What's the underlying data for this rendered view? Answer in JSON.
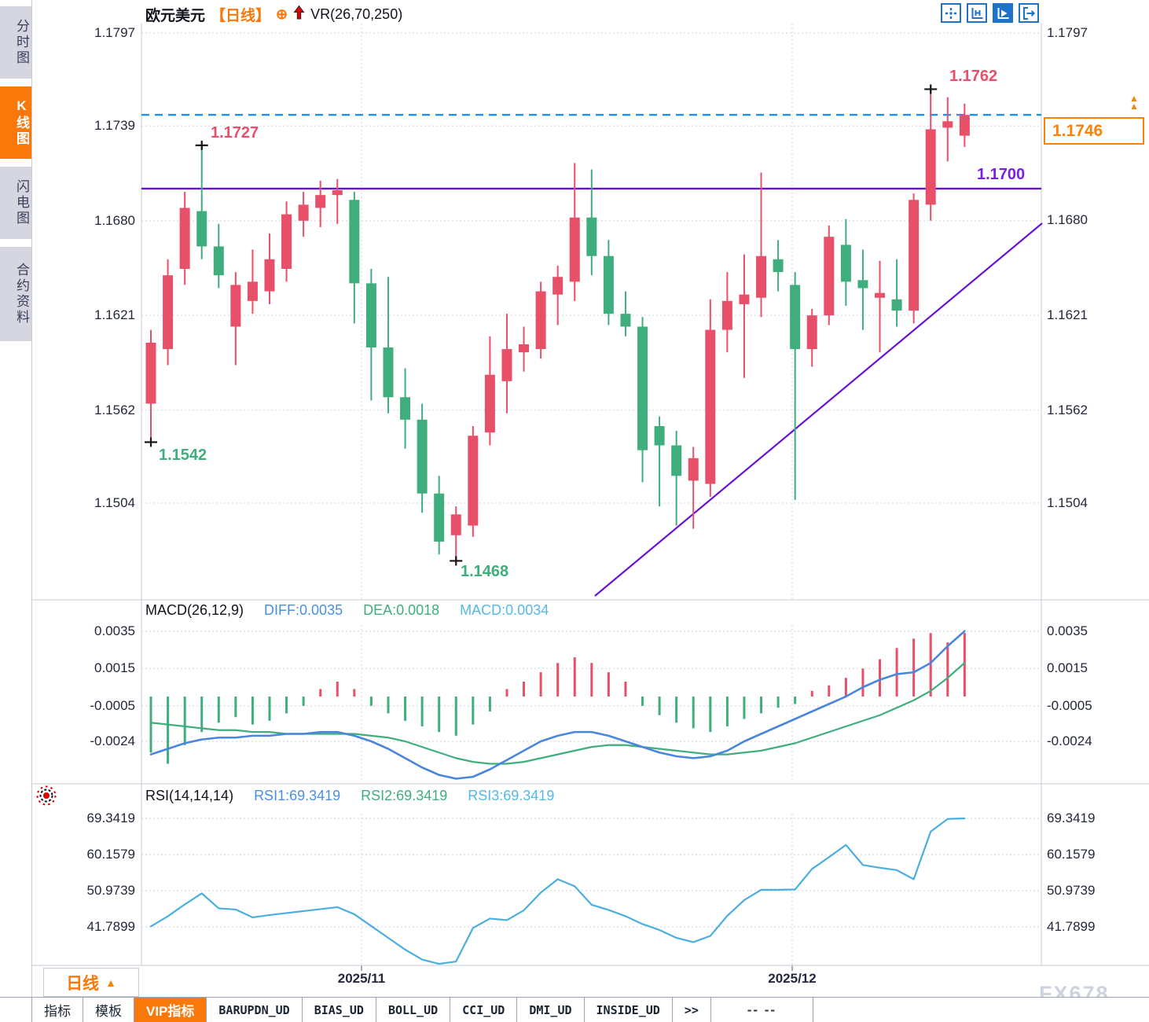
{
  "watermark": {
    "text": "FX678"
  },
  "sidebar": {
    "tabs": [
      {
        "label": "分时图",
        "active": false
      },
      {
        "label": "K线图",
        "active": true
      },
      {
        "label": "闪电图",
        "active": false
      },
      {
        "label": "合约资料",
        "active": false
      }
    ]
  },
  "header": {
    "symbol": "欧元美元",
    "period_tag": "【日线】",
    "overlay_icon": "circle-plus-icon",
    "trend_icon": "red-up-arrow-icon",
    "indicator": "VR(26,70,250)"
  },
  "toolbar": {
    "buttons": [
      {
        "icon": "pan-crosshair-icon",
        "active": false
      },
      {
        "icon": "axis-scale-icon",
        "active": false
      },
      {
        "icon": "auto-scroll-icon",
        "active": true
      },
      {
        "icon": "jump-to-latest-icon",
        "active": false
      }
    ]
  },
  "period_selector": {
    "label": "日线",
    "arrow": "▲"
  },
  "bottom_tabs": {
    "items": [
      {
        "label": "指标",
        "active": false
      },
      {
        "label": "模板",
        "active": false
      },
      {
        "label": "VIP指标",
        "active": true
      },
      {
        "label": "BARUPDN_UD",
        "active": false
      },
      {
        "label": "BIAS_UD",
        "active": false
      },
      {
        "label": "BOLL_UD",
        "active": false
      },
      {
        "label": "CCI_UD",
        "active": false
      },
      {
        "label": "DMI_UD",
        "active": false
      },
      {
        "label": "INSIDE_UD",
        "active": false
      },
      {
        "label": ">>",
        "active": false
      }
    ],
    "time_placeholder": "-- --"
  },
  "colors": {
    "accent": "#f8780a",
    "up": "#e8506a",
    "down": "#3fae7c",
    "support_line": "#6610d2",
    "trend_line": "#6a10d8",
    "last_price_line": "#2090f0",
    "diff_line": "#4a86dc",
    "dea_line": "#3fae7c",
    "macd_text": "#55b8e8",
    "rsi_line": "#4aaede",
    "axis_text": "#23273a"
  },
  "chart_data": {
    "main": {
      "type": "candlestick",
      "symbol": "欧元美元",
      "period": "日线",
      "y_ticks": [
        "1.1797",
        "1.1739",
        "1.1680",
        "1.1621",
        "1.1562",
        "1.1504"
      ],
      "ylim": [
        1.1504,
        1.1797
      ],
      "x_labels": [
        "2025/11",
        "2025/12"
      ],
      "annotations": {
        "high1": "1.1727",
        "high2": "1.1762",
        "low1": "1.1542",
        "low2": "1.1468"
      },
      "levels": {
        "support_label": "1.1700",
        "support_value": 1.17,
        "last_price": "1.1746",
        "last_price_value": 1.1746
      },
      "markers": [
        {
          "index": 0,
          "price": 1.1542,
          "type": "low"
        },
        {
          "index": 3,
          "price": 1.1727,
          "type": "high"
        },
        {
          "index": 18,
          "price": 1.1468,
          "type": "low"
        },
        {
          "index": 46,
          "price": 1.1762,
          "type": "high"
        }
      ],
      "candles": [
        [
          1.1566,
          1.1612,
          1.1542,
          1.1604
        ],
        [
          1.16,
          1.1656,
          1.159,
          1.1646
        ],
        [
          1.165,
          1.1698,
          1.164,
          1.1688
        ],
        [
          1.1686,
          1.1727,
          1.1656,
          1.1664
        ],
        [
          1.1664,
          1.1678,
          1.1638,
          1.1646
        ],
        [
          1.1614,
          1.1648,
          1.159,
          1.164
        ],
        [
          1.163,
          1.1662,
          1.1622,
          1.1642
        ],
        [
          1.1636,
          1.1672,
          1.1628,
          1.1656
        ],
        [
          1.165,
          1.1692,
          1.1642,
          1.1684
        ],
        [
          1.168,
          1.1698,
          1.167,
          1.169
        ],
        [
          1.1688,
          1.1705,
          1.1676,
          1.1696
        ],
        [
          1.1696,
          1.1706,
          1.1678,
          1.1699
        ],
        [
          1.1693,
          1.1698,
          1.1616,
          1.1641
        ],
        [
          1.1641,
          1.165,
          1.1568,
          1.1601
        ],
        [
          1.1601,
          1.1645,
          1.156,
          1.157
        ],
        [
          1.157,
          1.1588,
          1.1538,
          1.1556
        ],
        [
          1.1556,
          1.1566,
          1.1498,
          1.151
        ],
        [
          1.151,
          1.1521,
          1.1472,
          1.148
        ],
        [
          1.1484,
          1.1502,
          1.1468,
          1.1497
        ],
        [
          1.149,
          1.1552,
          1.1483,
          1.1546
        ],
        [
          1.1548,
          1.1608,
          1.154,
          1.1584
        ],
        [
          1.158,
          1.1622,
          1.156,
          1.16
        ],
        [
          1.1598,
          1.1614,
          1.1586,
          1.1603
        ],
        [
          1.16,
          1.1642,
          1.1594,
          1.1636
        ],
        [
          1.1634,
          1.1652,
          1.1615,
          1.1645
        ],
        [
          1.1642,
          1.1716,
          1.163,
          1.1682
        ],
        [
          1.1682,
          1.1712,
          1.1646,
          1.1658
        ],
        [
          1.1658,
          1.1668,
          1.1615,
          1.1622
        ],
        [
          1.1622,
          1.1636,
          1.1608,
          1.1614
        ],
        [
          1.1614,
          1.162,
          1.1517,
          1.1537
        ],
        [
          1.1552,
          1.1558,
          1.1502,
          1.154
        ],
        [
          1.154,
          1.1549,
          1.149,
          1.1521
        ],
        [
          1.1518,
          1.1539,
          1.1488,
          1.1532
        ],
        [
          1.1516,
          1.1631,
          1.1508,
          1.1612
        ],
        [
          1.1612,
          1.1648,
          1.1598,
          1.163
        ],
        [
          1.1628,
          1.1659,
          1.1582,
          1.1634
        ],
        [
          1.1632,
          1.171,
          1.162,
          1.1658
        ],
        [
          1.1656,
          1.1668,
          1.1636,
          1.1648
        ],
        [
          1.164,
          1.1648,
          1.1506,
          1.16
        ],
        [
          1.16,
          1.1625,
          1.1589,
          1.1621
        ],
        [
          1.1621,
          1.1677,
          1.1615,
          1.167
        ],
        [
          1.1665,
          1.1681,
          1.1627,
          1.1642
        ],
        [
          1.1643,
          1.1662,
          1.1612,
          1.1638
        ],
        [
          1.1632,
          1.1655,
          1.1598,
          1.1635
        ],
        [
          1.1631,
          1.1656,
          1.1614,
          1.1624
        ],
        [
          1.1624,
          1.1697,
          1.1616,
          1.1693
        ],
        [
          1.169,
          1.1762,
          1.168,
          1.1737
        ],
        [
          1.1738,
          1.1757,
          1.1717,
          1.1742
        ],
        [
          1.1733,
          1.1753,
          1.1726,
          1.1746
        ]
      ]
    },
    "macd": {
      "type": "bar",
      "title": "MACD(26,12,9)",
      "legend": {
        "diff": "DIFF:0.0035",
        "dea": "DEA:0.0018",
        "macd": "MACD:0.0034"
      },
      "y_ticks": [
        "0.0035",
        "0.0015",
        "-0.0005",
        "-0.0024"
      ],
      "hist": [
        -0.003,
        -0.0036,
        -0.0026,
        -0.0019,
        -0.0014,
        -0.0011,
        -0.0015,
        -0.0013,
        -0.0009,
        -0.0005,
        0.0004,
        0.0008,
        0.0004,
        -0.0005,
        -0.0009,
        -0.0013,
        -0.0016,
        -0.0019,
        -0.0021,
        -0.0015,
        -0.0008,
        0.0004,
        0.0008,
        0.0013,
        0.0018,
        0.0021,
        0.0018,
        0.0013,
        0.0008,
        -0.0005,
        -0.001,
        -0.0014,
        -0.0017,
        -0.0019,
        -0.0016,
        -0.0012,
        -0.0009,
        -0.0006,
        -0.0004,
        0.0003,
        0.0006,
        0.001,
        0.0015,
        0.002,
        0.0026,
        0.0031,
        0.0034,
        0.0029,
        0.0034
      ],
      "diff": [
        -0.0031,
        -0.0028,
        -0.0025,
        -0.0023,
        -0.0022,
        -0.0022,
        -0.0021,
        -0.0021,
        -0.002,
        -0.002,
        -0.0019,
        -0.0019,
        -0.0021,
        -0.0024,
        -0.0028,
        -0.0033,
        -0.0038,
        -0.0042,
        -0.0044,
        -0.0043,
        -0.0039,
        -0.0034,
        -0.0029,
        -0.0024,
        -0.0021,
        -0.0019,
        -0.0019,
        -0.0021,
        -0.0024,
        -0.0027,
        -0.003,
        -0.0032,
        -0.0033,
        -0.0032,
        -0.0029,
        -0.0024,
        -0.002,
        -0.0016,
        -0.0012,
        -0.0008,
        -0.0004,
        0.0,
        0.0005,
        0.0009,
        0.0012,
        0.0013,
        0.0018,
        0.0027,
        0.0035
      ],
      "dea": [
        -0.0014,
        -0.0015,
        -0.0016,
        -0.0017,
        -0.0018,
        -0.0018,
        -0.0019,
        -0.0019,
        -0.002,
        -0.002,
        -0.002,
        -0.002,
        -0.002,
        -0.0021,
        -0.0022,
        -0.0024,
        -0.0027,
        -0.003,
        -0.0033,
        -0.0035,
        -0.0036,
        -0.0036,
        -0.0035,
        -0.0033,
        -0.0031,
        -0.0029,
        -0.0027,
        -0.0026,
        -0.0026,
        -0.0027,
        -0.0028,
        -0.0029,
        -0.003,
        -0.0031,
        -0.0031,
        -0.003,
        -0.0029,
        -0.0027,
        -0.0025,
        -0.0022,
        -0.0019,
        -0.0016,
        -0.0013,
        -0.001,
        -0.0006,
        -0.0002,
        0.0003,
        0.001,
        0.0018
      ]
    },
    "rsi": {
      "type": "line",
      "title": "RSI(14,14,14)",
      "legend": {
        "rsi1": "RSI1:69.3419",
        "rsi2": "RSI2:69.3419",
        "rsi3": "RSI3:69.3419"
      },
      "y_ticks": [
        "69.3419",
        "60.1579",
        "50.9739",
        "41.7899"
      ],
      "values": [
        41.9,
        44.5,
        47.5,
        50.3,
        46.5,
        46.2,
        44.2,
        44.8,
        45.3,
        45.8,
        46.3,
        46.8,
        45.0,
        42.0,
        39.0,
        36.0,
        33.5,
        32.4,
        33.0,
        41.5,
        43.9,
        43.5,
        46.0,
        50.5,
        53.9,
        52.1,
        47.4,
        46.1,
        44.5,
        42.5,
        41.0,
        39.0,
        37.9,
        39.5,
        44.6,
        48.6,
        51.2,
        51.2,
        51.3,
        56.5,
        59.5,
        62.6,
        57.5,
        56.8,
        56.2,
        53.9,
        66.0,
        69.2,
        69.3419
      ]
    }
  }
}
